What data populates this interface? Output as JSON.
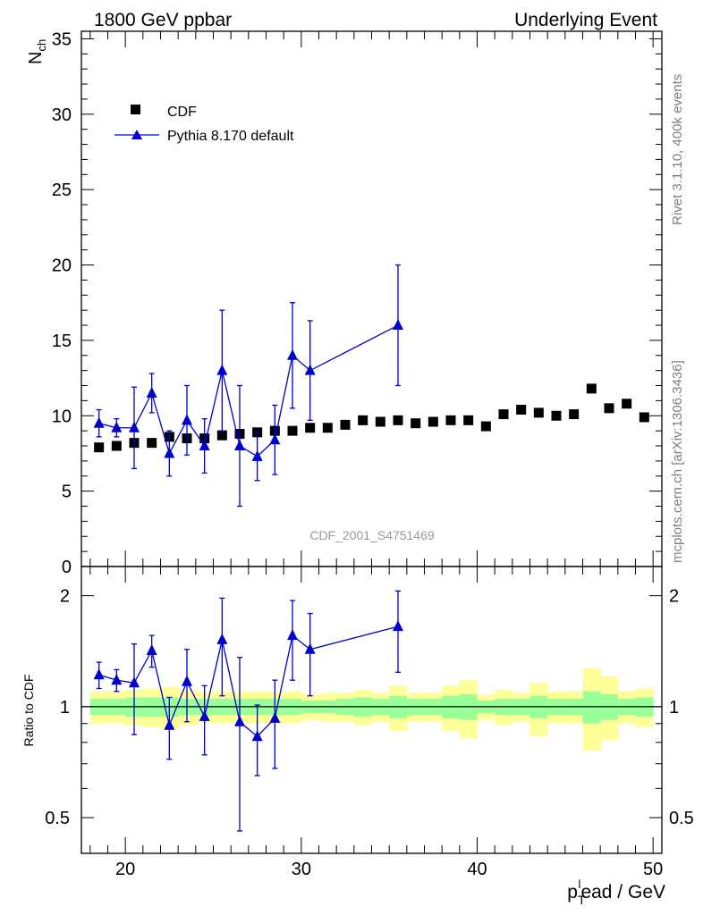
{
  "header": {
    "left": "1800 GeV ppbar",
    "right": "Underlying Event"
  },
  "side_labels": {
    "rivet": "Rivet 3.1.10,  400k events",
    "mcplots": "mcplots.cern.ch [arXiv:1306.3436]"
  },
  "watermark": "CDF_2001_S4751469",
  "colors": {
    "data": "#000000",
    "mc": "#0000cc",
    "band_inner": "#99ff99",
    "band_outer": "#ffff99"
  },
  "chart_data": [
    {
      "panel": "main",
      "type": "scatter",
      "ylabel_main": "N",
      "ylabel_sub": "ch",
      "xlim": [
        17.5,
        50.5
      ],
      "ylim": [
        0,
        35.5
      ],
      "yticks": [
        0,
        5,
        10,
        15,
        20,
        25,
        30,
        35
      ],
      "ytick_labels": [
        "0",
        "5",
        "10",
        "15",
        "20",
        "25",
        "30",
        "35"
      ],
      "legend": [
        {
          "name": "CDF",
          "marker": "square"
        },
        {
          "name": "Pythia 8.170 default",
          "marker": "triangle"
        }
      ],
      "series": [
        {
          "name": "CDF",
          "x": [
            18.5,
            19.5,
            20.5,
            21.5,
            22.5,
            23.5,
            24.5,
            25.5,
            26.5,
            27.5,
            28.5,
            29.5,
            30.5,
            31.5,
            32.5,
            33.5,
            34.5,
            35.5,
            36.5,
            37.5,
            38.5,
            39.5,
            40.5,
            41.5,
            42.5,
            43.5,
            44.5,
            45.5,
            46.5,
            47.5,
            48.5,
            49.5
          ],
          "y": [
            7.9,
            8.0,
            8.2,
            8.2,
            8.6,
            8.5,
            8.5,
            8.7,
            8.8,
            8.9,
            9.0,
            9.0,
            9.2,
            9.2,
            9.4,
            9.7,
            9.6,
            9.7,
            9.5,
            9.6,
            9.7,
            9.7,
            9.3,
            10.1,
            10.4,
            10.2,
            10.0,
            10.1,
            11.8,
            10.5,
            10.8,
            9.9
          ]
        },
        {
          "name": "Pythia 8.170 default",
          "x": [
            18.5,
            19.5,
            20.5,
            21.5,
            22.5,
            23.5,
            24.5,
            25.5,
            26.5,
            27.5,
            28.5,
            29.5,
            30.5,
            35.5
          ],
          "y": [
            9.5,
            9.2,
            9.2,
            11.5,
            7.5,
            9.7,
            8.0,
            13.0,
            8.0,
            7.3,
            8.4,
            14.0,
            13.0,
            16.0
          ],
          "err": [
            0.9,
            0.6,
            2.7,
            1.3,
            1.5,
            2.3,
            1.8,
            4.0,
            4.0,
            1.6,
            2.3,
            3.5,
            3.3,
            4.0
          ]
        }
      ]
    },
    {
      "panel": "ratio",
      "type": "scatter",
      "ylabel": "Ratio to CDF",
      "xlabel_main": "p",
      "xlabel_sub": "T",
      "xlabel_sup": "l",
      "xlabel_rest": "ead / GeV",
      "xlim": [
        17.5,
        50.5
      ],
      "ylim_log": [
        0.4,
        2.4
      ],
      "yticks": [
        0.5,
        1,
        2
      ],
      "ytick_labels": [
        "0.5",
        "1",
        "2"
      ],
      "xticks": [
        20,
        30,
        40,
        50
      ],
      "xtick_labels": [
        "20",
        "30",
        "40",
        "50"
      ],
      "ratio_line": 1,
      "band_inner": [
        [
          0.95,
          1.05
        ],
        [
          0.95,
          1.05
        ],
        [
          0.94,
          1.06
        ],
        [
          0.94,
          1.06
        ],
        [
          0.94,
          1.06
        ],
        [
          0.95,
          1.05
        ],
        [
          0.95,
          1.05
        ],
        [
          0.95,
          1.05
        ],
        [
          0.95,
          1.05
        ],
        [
          0.95,
          1.05
        ],
        [
          0.95,
          1.05
        ],
        [
          0.95,
          1.05
        ],
        [
          0.96,
          1.04
        ],
        [
          0.96,
          1.04
        ],
        [
          0.95,
          1.05
        ],
        [
          0.94,
          1.06
        ],
        [
          0.95,
          1.05
        ],
        [
          0.93,
          1.07
        ],
        [
          0.95,
          1.05
        ],
        [
          0.95,
          1.05
        ],
        [
          0.93,
          1.07
        ],
        [
          0.92,
          1.08
        ],
        [
          0.96,
          1.04
        ],
        [
          0.95,
          1.05
        ],
        [
          0.95,
          1.05
        ],
        [
          0.93,
          1.07
        ],
        [
          0.95,
          1.05
        ],
        [
          0.95,
          1.05
        ],
        [
          0.9,
          1.1
        ],
        [
          0.92,
          1.08
        ],
        [
          0.95,
          1.05
        ],
        [
          0.94,
          1.06
        ]
      ],
      "band_outer": [
        [
          0.9,
          1.1
        ],
        [
          0.9,
          1.1
        ],
        [
          0.89,
          1.11
        ],
        [
          0.88,
          1.12
        ],
        [
          0.87,
          1.13
        ],
        [
          0.89,
          1.11
        ],
        [
          0.9,
          1.1
        ],
        [
          0.9,
          1.1
        ],
        [
          0.9,
          1.1
        ],
        [
          0.9,
          1.1
        ],
        [
          0.9,
          1.1
        ],
        [
          0.9,
          1.1
        ],
        [
          0.92,
          1.08
        ],
        [
          0.91,
          1.09
        ],
        [
          0.91,
          1.09
        ],
        [
          0.89,
          1.11
        ],
        [
          0.91,
          1.09
        ],
        [
          0.86,
          1.14
        ],
        [
          0.91,
          1.09
        ],
        [
          0.91,
          1.09
        ],
        [
          0.86,
          1.14
        ],
        [
          0.82,
          1.18
        ],
        [
          0.92,
          1.08
        ],
        [
          0.89,
          1.11
        ],
        [
          0.91,
          1.09
        ],
        [
          0.83,
          1.16
        ],
        [
          0.9,
          1.1
        ],
        [
          0.9,
          1.1
        ],
        [
          0.76,
          1.27
        ],
        [
          0.81,
          1.21
        ],
        [
          0.9,
          1.1
        ],
        [
          0.88,
          1.12
        ]
      ],
      "series": [
        {
          "name": "Pythia 8.170 default",
          "x": [
            18.5,
            19.5,
            20.5,
            21.5,
            22.5,
            23.5,
            24.5,
            25.5,
            26.5,
            27.5,
            28.5,
            29.5,
            30.5,
            35.5
          ],
          "y": [
            1.22,
            1.18,
            1.16,
            1.42,
            0.89,
            1.17,
            0.94,
            1.52,
            0.91,
            0.83,
            0.93,
            1.56,
            1.43,
            1.65
          ],
          "err": [
            0.1,
            0.08,
            0.32,
            0.14,
            0.17,
            0.26,
            0.2,
            0.45,
            0.45,
            0.18,
            0.25,
            0.38,
            0.36,
            0.41
          ]
        }
      ]
    }
  ]
}
